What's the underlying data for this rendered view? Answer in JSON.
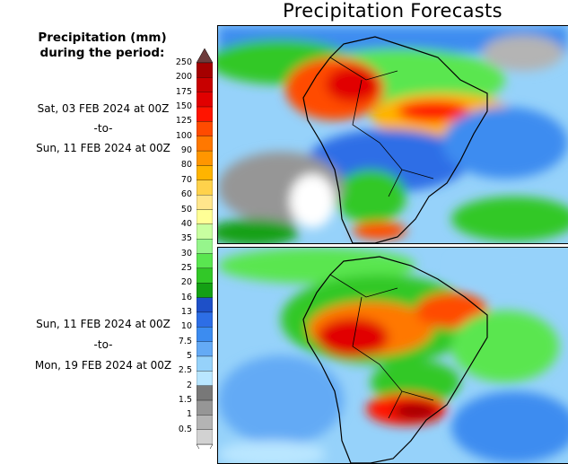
{
  "title": "Precipitation Forecasts",
  "legend": {
    "title_line1": "Precipitation (mm)",
    "title_line2": "during the period:",
    "levels": [
      "250",
      "200",
      "175",
      "150",
      "125",
      "100",
      "90",
      "80",
      "70",
      "60",
      "50",
      "40",
      "35",
      "30",
      "25",
      "20",
      "16",
      "13",
      "10",
      "7.5",
      "5",
      "2.5",
      "2",
      "1.5",
      "1",
      "0.5"
    ],
    "colors": [
      "#a50000",
      "#c80000",
      "#e10000",
      "#ff1400",
      "#ff4b00",
      "#ff7800",
      "#ff9600",
      "#ffb400",
      "#ffd24b",
      "#ffe68c",
      "#ffff96",
      "#c8ffa0",
      "#96f58c",
      "#5ae650",
      "#32c828",
      "#14a014",
      "#1e50c8",
      "#2d6ee6",
      "#3c8cf0",
      "#64aaf5",
      "#96d2fa",
      "#b9e6ff",
      "#787878",
      "#969696",
      "#b4b4b4",
      "#d2d2d2"
    ],
    "top_color": "#6e3c3c"
  },
  "periods": [
    {
      "start": "Sat, 03 FEB 2024 at 00Z",
      "sep": "-to-",
      "end": "Sun, 11 FEB 2024 at 00Z"
    },
    {
      "start": "Sun, 11 FEB 2024 at 00Z",
      "sep": "-to-",
      "end": "Mon, 19 FEB 2024 at 00Z"
    }
  ]
}
